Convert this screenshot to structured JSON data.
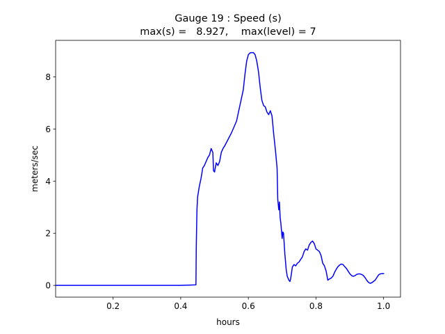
{
  "chart_data": {
    "type": "line",
    "title": "Gauge 19 : Speed (s)",
    "subtitle": "max(s) =   8.927,    max(level) = 7",
    "xlabel": "hours",
    "ylabel": "meters/sec",
    "xlim": [
      0.03,
      1.05
    ],
    "ylim": [
      -0.45,
      9.4
    ],
    "xticks": [
      0.2,
      0.4,
      0.6,
      0.8,
      1.0
    ],
    "xtick_labels": [
      "0.2",
      "0.4",
      "0.6",
      "0.8",
      "1.0"
    ],
    "yticks": [
      0,
      2,
      4,
      6,
      8
    ],
    "ytick_labels": [
      "0",
      "2",
      "4",
      "6",
      "8"
    ],
    "grid": false,
    "line_color": "#0000ff",
    "series": [
      {
        "x": [
          0.03,
          0.1,
          0.2,
          0.3,
          0.4,
          0.445,
          0.446,
          0.448,
          0.45,
          0.455,
          0.46,
          0.465,
          0.47,
          0.475,
          0.48,
          0.485,
          0.49,
          0.495,
          0.497,
          0.5,
          0.505,
          0.51,
          0.515,
          0.52,
          0.525,
          0.53,
          0.54,
          0.55,
          0.56,
          0.565,
          0.57,
          0.575,
          0.58,
          0.585,
          0.59,
          0.595,
          0.6,
          0.605,
          0.61,
          0.615,
          0.62,
          0.625,
          0.63,
          0.635,
          0.64,
          0.645,
          0.65,
          0.655,
          0.66,
          0.665,
          0.67,
          0.675,
          0.68,
          0.685,
          0.687,
          0.69,
          0.692,
          0.694,
          0.696,
          0.698,
          0.7,
          0.702,
          0.704,
          0.706,
          0.708,
          0.71,
          0.712,
          0.715,
          0.72,
          0.723,
          0.725,
          0.728,
          0.73,
          0.735,
          0.74,
          0.745,
          0.75,
          0.755,
          0.76,
          0.765,
          0.77,
          0.775,
          0.78,
          0.785,
          0.79,
          0.795,
          0.8,
          0.805,
          0.81,
          0.815,
          0.82,
          0.825,
          0.83,
          0.835,
          0.84,
          0.845,
          0.85,
          0.855,
          0.86,
          0.865,
          0.87,
          0.875,
          0.88,
          0.885,
          0.89,
          0.895,
          0.9,
          0.905,
          0.91,
          0.915,
          0.92,
          0.925,
          0.93,
          0.935,
          0.94,
          0.945,
          0.95,
          0.955,
          0.96,
          0.965,
          0.97,
          0.975,
          0.98,
          0.985,
          0.99,
          0.995,
          1.0
        ],
        "y": [
          0.0,
          0.0,
          0.0,
          0.0,
          0.0,
          0.02,
          1.5,
          2.9,
          3.4,
          3.8,
          4.1,
          4.5,
          4.6,
          4.75,
          4.9,
          5.0,
          5.25,
          5.1,
          4.4,
          4.35,
          4.7,
          4.6,
          4.75,
          5.1,
          5.25,
          5.35,
          5.6,
          5.85,
          6.15,
          6.3,
          6.6,
          6.9,
          7.2,
          7.5,
          8.1,
          8.6,
          8.85,
          8.92,
          8.93,
          8.93,
          8.85,
          8.6,
          8.2,
          7.6,
          7.1,
          6.9,
          6.85,
          6.65,
          6.55,
          6.7,
          6.5,
          5.8,
          5.2,
          4.5,
          3.3,
          2.9,
          3.2,
          2.6,
          2.4,
          2.1,
          1.8,
          2.05,
          2.0,
          1.6,
          1.2,
          0.9,
          0.6,
          0.35,
          0.2,
          0.15,
          0.25,
          0.5,
          0.7,
          0.8,
          0.75,
          0.85,
          0.9,
          1.0,
          1.1,
          1.3,
          1.4,
          1.35,
          1.55,
          1.65,
          1.7,
          1.6,
          1.4,
          1.35,
          1.3,
          1.15,
          0.85,
          0.75,
          0.55,
          0.2,
          0.25,
          0.28,
          0.35,
          0.5,
          0.62,
          0.72,
          0.78,
          0.82,
          0.8,
          0.72,
          0.65,
          0.55,
          0.45,
          0.38,
          0.35,
          0.37,
          0.42,
          0.44,
          0.44,
          0.42,
          0.38,
          0.3,
          0.2,
          0.12,
          0.08,
          0.1,
          0.15,
          0.2,
          0.3,
          0.4,
          0.44,
          0.45,
          0.45
        ]
      }
    ]
  }
}
